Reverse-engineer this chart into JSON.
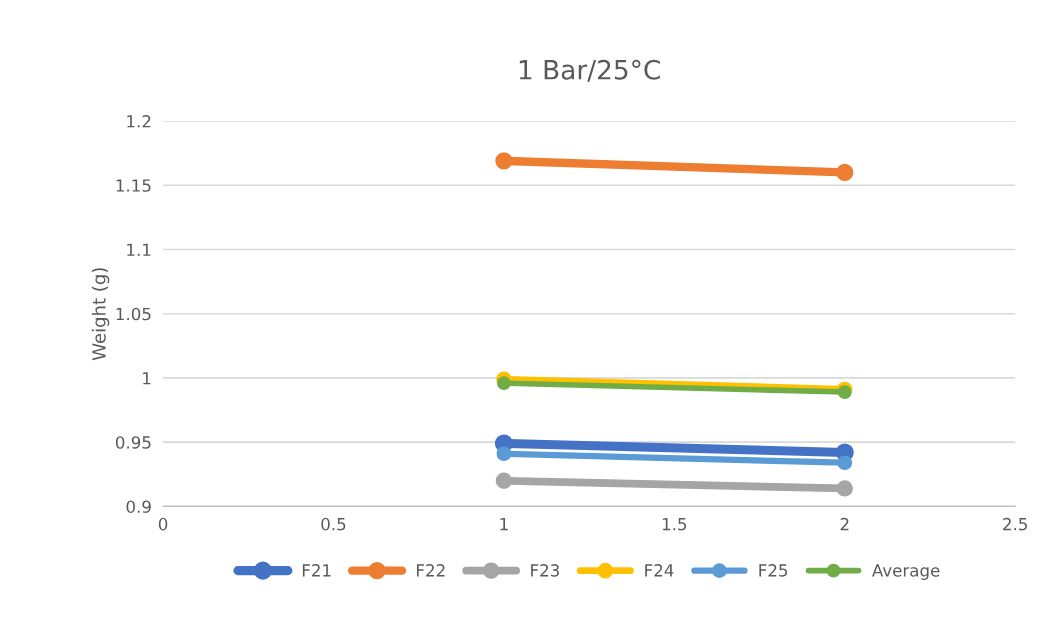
{
  "chart_data": {
    "type": "line",
    "title": "1 Bar/25°C",
    "ylabel": "Weight (g)",
    "x": [
      1,
      2
    ],
    "series": [
      {
        "name": "F21",
        "color": "#4472c4",
        "values": [
          0.949,
          0.942
        ]
      },
      {
        "name": "F22",
        "color": "#ed7d31",
        "values": [
          1.169,
          1.16
        ]
      },
      {
        "name": "F23",
        "color": "#a5a5a5",
        "values": [
          0.92,
          0.914
        ]
      },
      {
        "name": "F24",
        "color": "#ffc000",
        "values": [
          0.999,
          0.991
        ]
      },
      {
        "name": "F25",
        "color": "#5b9bd5",
        "values": [
          0.941,
          0.934
        ]
      },
      {
        "name": "Average",
        "color": "#70ad47",
        "values": [
          0.996,
          0.989
        ]
      }
    ],
    "xlim": [
      0,
      2.5
    ],
    "xticks": [
      0,
      0.5,
      1,
      1.5,
      2,
      2.5
    ],
    "ylim": [
      0.9,
      1.2
    ],
    "yticks": [
      0.9,
      0.95,
      1,
      1.05,
      1.1,
      1.15,
      1.2
    ],
    "grid": "y",
    "legend": "bottom",
    "marker": "circle",
    "line_style": "solid"
  }
}
